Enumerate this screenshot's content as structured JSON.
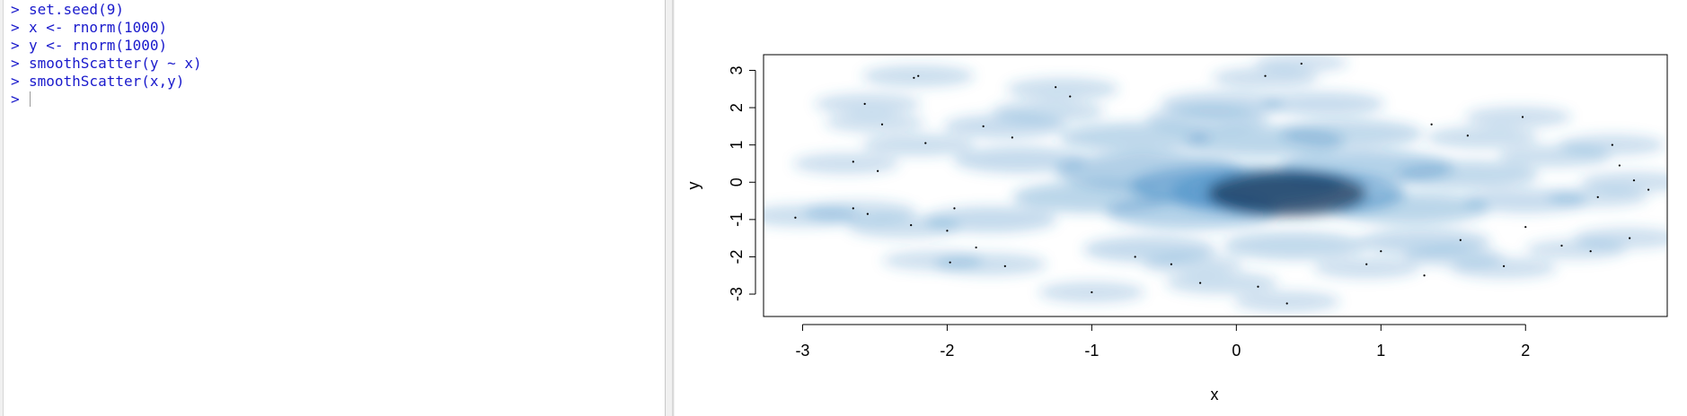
{
  "console": {
    "prompt": ">",
    "lines": [
      {
        "prompt": ">",
        "code": "set.seed(9)"
      },
      {
        "prompt": ">",
        "code": "x <- rnorm(1000)"
      },
      {
        "prompt": ">",
        "code": "y <- rnorm(1000)"
      },
      {
        "prompt": ">",
        "code": "smoothScatter(y ~ x)"
      },
      {
        "prompt": ">",
        "code": "smoothScatter(x,y)"
      }
    ],
    "input": ""
  },
  "colors": {
    "console_text": "#1a1acc",
    "density_low": "#ffffff",
    "density_high": "#000f2f",
    "density_mid": "#2f7fbf"
  },
  "chart_data": {
    "type": "heatmap",
    "subtype": "smoothScatter density",
    "title": "",
    "xlabel": "x",
    "ylabel": "y",
    "xlim": [
      -3.27,
      2.98
    ],
    "ylim": [
      -3.6,
      3.42
    ],
    "xticks": [
      -3,
      -2,
      -1,
      0,
      1,
      2
    ],
    "yticks": [
      -3,
      -2,
      -1,
      0,
      1,
      2,
      3
    ],
    "xtick_labels": [
      "-3",
      "-2",
      "-1",
      "0",
      "1",
      "2"
    ],
    "ytick_labels": [
      "-3",
      "-2",
      "-1",
      "0",
      "1",
      "2",
      "3"
    ],
    "grid": false,
    "density_blobs": [
      {
        "x": 0.35,
        "y": -0.3,
        "w": 2.2
      },
      {
        "x": 0.0,
        "y": -0.1,
        "w": 1.8
      },
      {
        "x": -0.6,
        "y": 0.3,
        "w": 1.4
      },
      {
        "x": 0.9,
        "y": 0.4,
        "w": 1.2
      },
      {
        "x": -0.3,
        "y": -0.8,
        "w": 1.2
      },
      {
        "x": 1.2,
        "y": -0.7,
        "w": 1.0
      },
      {
        "x": -1.0,
        "y": -0.4,
        "w": 1.0
      },
      {
        "x": 0.2,
        "y": 1.1,
        "w": 1.0
      },
      {
        "x": -0.7,
        "y": 1.2,
        "w": 0.9
      },
      {
        "x": 0.8,
        "y": 1.3,
        "w": 0.8
      },
      {
        "x": 1.6,
        "y": 0.2,
        "w": 0.8
      },
      {
        "x": -1.5,
        "y": 0.6,
        "w": 0.7
      },
      {
        "x": -1.7,
        "y": -1.0,
        "w": 0.7
      },
      {
        "x": 0.4,
        "y": -1.7,
        "w": 0.8
      },
      {
        "x": -0.6,
        "y": -1.8,
        "w": 0.7
      },
      {
        "x": 1.3,
        "y": -1.6,
        "w": 0.7
      },
      {
        "x": 2.0,
        "y": -0.5,
        "w": 0.6
      },
      {
        "x": -0.1,
        "y": 2.1,
        "w": 0.6
      },
      {
        "x": 0.6,
        "y": 2.1,
        "w": 0.6
      },
      {
        "x": -1.6,
        "y": 1.5,
        "w": 0.6
      },
      {
        "x": 2.2,
        "y": 0.7,
        "w": 0.5
      },
      {
        "x": -2.2,
        "y": 1.0,
        "w": 0.5
      },
      {
        "x": -2.3,
        "y": -1.2,
        "w": 0.5
      },
      {
        "x": -2.6,
        "y": -0.8,
        "w": 0.5
      },
      {
        "x": -2.2,
        "y": 2.85,
        "w": 0.5
      },
      {
        "x": -2.55,
        "y": 2.1,
        "w": 0.45
      },
      {
        "x": -2.7,
        "y": 0.5,
        "w": 0.45
      },
      {
        "x": -3.0,
        "y": -0.9,
        "w": 0.5
      },
      {
        "x": -2.5,
        "y": 1.6,
        "w": 0.4
      },
      {
        "x": -1.2,
        "y": 2.5,
        "w": 0.5
      },
      {
        "x": 0.2,
        "y": 2.8,
        "w": 0.45
      },
      {
        "x": 0.45,
        "y": 3.2,
        "w": 0.35
      },
      {
        "x": 1.95,
        "y": 1.75,
        "w": 0.45
      },
      {
        "x": 2.6,
        "y": 1.0,
        "w": 0.45
      },
      {
        "x": 2.75,
        "y": 0.0,
        "w": 0.45
      },
      {
        "x": 2.5,
        "y": -0.4,
        "w": 0.4
      },
      {
        "x": 2.7,
        "y": -1.5,
        "w": 0.45
      },
      {
        "x": 2.35,
        "y": -1.8,
        "w": 0.4
      },
      {
        "x": 1.85,
        "y": -2.3,
        "w": 0.45
      },
      {
        "x": 0.9,
        "y": -2.3,
        "w": 0.45
      },
      {
        "x": -0.1,
        "y": -2.7,
        "w": 0.5
      },
      {
        "x": -1.0,
        "y": -2.95,
        "w": 0.45
      },
      {
        "x": 0.35,
        "y": -3.2,
        "w": 0.45
      },
      {
        "x": -1.7,
        "y": -2.2,
        "w": 0.5
      },
      {
        "x": -2.1,
        "y": -2.1,
        "w": 0.4
      },
      {
        "x": -0.3,
        "y": -2.2,
        "w": 0.4
      },
      {
        "x": 1.5,
        "y": -2.0,
        "w": 0.4
      },
      {
        "x": 1.7,
        "y": 1.2,
        "w": 0.5
      },
      {
        "x": -1.3,
        "y": 1.9,
        "w": 0.5
      },
      {
        "x": -0.2,
        "y": 1.7,
        "w": 0.6
      }
    ],
    "outlier_points": [
      {
        "x": -2.2,
        "y": 2.85
      },
      {
        "x": -2.23,
        "y": 2.8
      },
      {
        "x": -2.57,
        "y": 2.1
      },
      {
        "x": -2.45,
        "y": 1.55
      },
      {
        "x": -2.65,
        "y": 0.55
      },
      {
        "x": -2.48,
        "y": 0.3
      },
      {
        "x": -3.05,
        "y": -0.95
      },
      {
        "x": -2.65,
        "y": -0.7
      },
      {
        "x": -2.55,
        "y": -0.85
      },
      {
        "x": -2.25,
        "y": -1.15
      },
      {
        "x": -2.0,
        "y": -1.3
      },
      {
        "x": -1.95,
        "y": -0.7
      },
      {
        "x": -1.8,
        "y": -1.75
      },
      {
        "x": -1.6,
        "y": -2.25
      },
      {
        "x": -1.98,
        "y": -2.15
      },
      {
        "x": -1.0,
        "y": -2.95
      },
      {
        "x": -0.25,
        "y": -2.7
      },
      {
        "x": 0.15,
        "y": -2.8
      },
      {
        "x": 0.35,
        "y": -3.25
      },
      {
        "x": 0.9,
        "y": -2.2
      },
      {
        "x": 1.3,
        "y": -2.5
      },
      {
        "x": 1.85,
        "y": -2.25
      },
      {
        "x": 2.45,
        "y": -1.85
      },
      {
        "x": 2.25,
        "y": -1.7
      },
      {
        "x": 2.72,
        "y": -1.5
      },
      {
        "x": 2.5,
        "y": -0.4
      },
      {
        "x": 2.85,
        "y": -0.2
      },
      {
        "x": 2.75,
        "y": 0.05
      },
      {
        "x": 2.65,
        "y": 0.45
      },
      {
        "x": 2.6,
        "y": 1.0
      },
      {
        "x": 1.98,
        "y": 1.75
      },
      {
        "x": 1.35,
        "y": 1.55
      },
      {
        "x": 1.6,
        "y": 1.25
      },
      {
        "x": 0.45,
        "y": 3.18
      },
      {
        "x": 0.2,
        "y": 2.85
      },
      {
        "x": -1.25,
        "y": 2.55
      },
      {
        "x": -1.15,
        "y": 2.3
      },
      {
        "x": -2.15,
        "y": 1.05
      },
      {
        "x": -1.55,
        "y": 1.2
      },
      {
        "x": -1.75,
        "y": 1.5
      },
      {
        "x": -0.45,
        "y": -2.2
      },
      {
        "x": -0.7,
        "y": -2.0
      },
      {
        "x": 1.0,
        "y": -1.85
      },
      {
        "x": 1.55,
        "y": -1.55
      },
      {
        "x": 2.0,
        "y": -1.2
      }
    ]
  }
}
